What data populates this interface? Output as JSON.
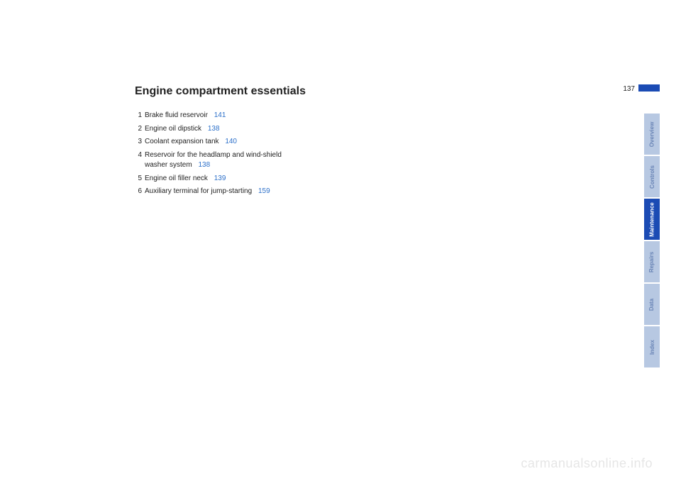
{
  "page": {
    "number": "137",
    "title": "Engine compartment essentials"
  },
  "items": [
    {
      "num": "1",
      "text": "Brake fluid reservoir",
      "ref": "141"
    },
    {
      "num": "2",
      "text": "Engine oil dipstick",
      "ref": "138"
    },
    {
      "num": "3",
      "text": "Coolant expansion tank",
      "ref": "140"
    },
    {
      "num": "4",
      "text": "Reservoir for the headlamp and wind-shield washer system",
      "ref": "138"
    },
    {
      "num": "5",
      "text": "Engine oil filler neck",
      "ref": "139"
    },
    {
      "num": "6",
      "text": "Auxiliary terminal for jump-starting",
      "ref": "159"
    }
  ],
  "tabs": [
    {
      "label": "Overview",
      "active": false
    },
    {
      "label": "Controls",
      "active": false
    },
    {
      "label": "Maintenance",
      "active": true
    },
    {
      "label": "Repairs",
      "active": false
    },
    {
      "label": "Data",
      "active": false
    },
    {
      "label": "Index",
      "active": false
    }
  ],
  "watermark": "carmanualsonline.info",
  "colors": {
    "link": "#2b6fc9",
    "active_tab_bg": "#1b4bb4",
    "inactive_tab_bg": "#b7c8e2",
    "inactive_tab_text": "#6a85b6",
    "active_tab_text": "#ffffff",
    "watermark": "#e6e6e6"
  }
}
